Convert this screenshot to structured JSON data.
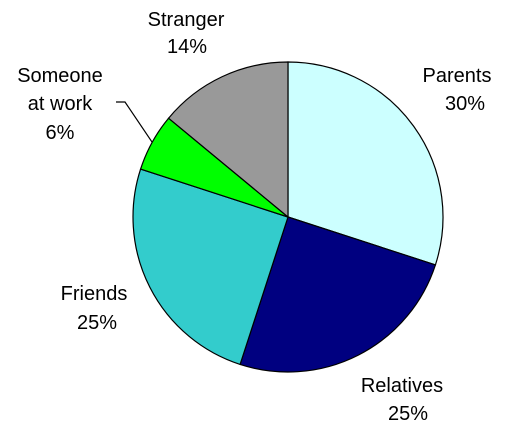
{
  "chart_data": {
    "type": "pie",
    "start_angle_deg": 0,
    "direction": "clockwise",
    "slices": [
      {
        "label_lines": [
          "Parents"
        ],
        "percent_label": "30%",
        "value": 30,
        "color": "#CCFFFF"
      },
      {
        "label_lines": [
          "Relatives"
        ],
        "percent_label": "25%",
        "value": 25,
        "color": "#000080"
      },
      {
        "label_lines": [
          "Friends"
        ],
        "percent_label": "25%",
        "value": 25,
        "color": "#33CCCC"
      },
      {
        "label_lines": [
          "Someone",
          "at work"
        ],
        "percent_label": "6%",
        "value": 6,
        "color": "#00FF00"
      },
      {
        "label_lines": [
          "Stranger"
        ],
        "percent_label": "14%",
        "value": 14,
        "color": "#999999"
      }
    ]
  }
}
